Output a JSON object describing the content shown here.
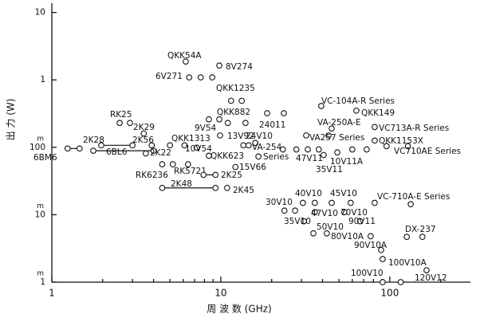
{
  "chart_data": {
    "type": "scatter",
    "x_label": "周 波 数 (GHz)",
    "y_label": "出 力 (W)",
    "log_x": true,
    "log_y": true,
    "xlim": [
      1,
      300
    ],
    "ylim": [
      0.001,
      13
    ],
    "xticks": [
      1,
      10,
      100
    ],
    "xminorticks": [
      2,
      3,
      4,
      5,
      6,
      7,
      8,
      9,
      20,
      30,
      40,
      50,
      60,
      70,
      80,
      90,
      200
    ],
    "yticks": [
      10,
      1,
      {
        "value": 0.1,
        "label": "100",
        "unit": "m"
      },
      {
        "value": 0.01,
        "label": "10",
        "unit": "m"
      },
      {
        "value": 0.001,
        "label": "1",
        "unit": "m"
      }
    ],
    "color": "#111111",
    "groups": [
      {
        "label": "QKK54A",
        "x": [
          6.2
        ],
        "y": [
          1.87
        ]
      },
      {
        "label": "8V274",
        "x": [
          9.8
        ],
        "y": [
          1.63
        ]
      },
      {
        "label": "6V271",
        "x": [
          6.5,
          7.6,
          8.9
        ],
        "y": [
          1.09,
          1.09,
          1.09
        ]
      },
      {
        "label": "QKK1235",
        "x": [
          11.5,
          13.3
        ],
        "y": [
          0.49,
          0.49
        ]
      },
      {
        "label": "QKK882",
        "x": [
          8.5,
          9.8
        ],
        "y": [
          0.26,
          0.26
        ]
      },
      {
        "label": "RK25",
        "x": [
          2.52,
          2.9
        ],
        "y": [
          0.23,
          0.23
        ]
      },
      {
        "label": "2K29",
        "x": [
          3.5
        ],
        "y": [
          0.16
        ]
      },
      {
        "label": "9V54",
        "x": [
          11,
          14
        ],
        "y": [
          0.23,
          0.23
        ]
      },
      {
        "label": "24011",
        "x": [
          18.8,
          23.6
        ],
        "y": [
          0.32,
          0.32
        ]
      },
      {
        "label": "13V92",
        "x": [
          9.9
        ],
        "y": [
          0.15
        ]
      },
      {
        "label": "24V10",
        "x": [
          16
        ],
        "y": [
          0.116
        ]
      },
      {
        "label": "2K28",
        "x": [
          1.96,
          3.0
        ],
        "y": [
          0.107,
          0.107
        ],
        "line": true
      },
      {
        "label": "2K56",
        "x": [
          3.9
        ],
        "y": [
          0.107
        ]
      },
      {
        "label": "QKK1313",
        "x": [
          5.0,
          6.1
        ],
        "y": [
          0.107,
          0.107
        ]
      },
      {
        "label": "10V54",
        "x": [
          7.2
        ],
        "y": [
          0.099
        ]
      },
      {
        "label": "VA-254",
        "x": [
          13.6,
          14.6
        ],
        "y": [
          0.107,
          0.107
        ]
      },
      {
        "label": "QKK623",
        "x": [
          8.5
        ],
        "y": [
          0.075
        ]
      },
      {
        "label": "6BL6",
        "x": [
          1.76,
          4.0
        ],
        "y": [
          0.089,
          0.089
        ],
        "line": true
      },
      {
        "label": "2K22",
        "x": [
          3.6
        ],
        "y": [
          0.081
        ]
      },
      {
        "label": "6BM6",
        "x": [
          1.24,
          1.46
        ],
        "y": [
          0.096,
          0.096
        ],
        "line": true
      },
      {
        "label": "Series",
        "x": [
          16.7
        ],
        "y": [
          0.073
        ]
      },
      {
        "label": "15V66",
        "x": [
          12.2
        ],
        "y": [
          0.051
        ]
      },
      {
        "label": "RK6236",
        "x": [
          4.5,
          5.2
        ],
        "y": [
          0.056,
          0.056
        ]
      },
      {
        "label": "RK5721",
        "x": [
          6.4
        ],
        "y": [
          0.056
        ]
      },
      {
        "label": "2K25",
        "x": [
          7.9,
          9.3
        ],
        "y": [
          0.039,
          0.039
        ],
        "line": true
      },
      {
        "label": "2K48",
        "x": [
          4.5,
          9.3
        ],
        "y": [
          0.025,
          0.025
        ],
        "line": true
      },
      {
        "label": "2K45",
        "x": [
          10.9
        ],
        "y": [
          0.025
        ]
      },
      {
        "label": "VC-104A-R Series",
        "x": [
          39.3
        ],
        "y": [
          0.41
        ]
      },
      {
        "label": "QKK149",
        "x": [
          63.4
        ],
        "y": [
          0.35
        ]
      },
      {
        "label": "VA-250A-E",
        "x": [
          45.3
        ],
        "y": [
          0.19
        ]
      },
      {
        "label": "VC713A-R Series",
        "x": [
          81.4
        ],
        "y": [
          0.2
        ]
      },
      {
        "label": "VA257 Series",
        "x": [
          32,
          43.4
        ],
        "y": [
          0.15,
          0.15
        ]
      },
      {
        "label": "QKK1153X",
        "x": [
          81.4
        ],
        "y": [
          0.126
        ]
      },
      {
        "label": "47V11",
        "x": [
          23.3,
          28,
          32.7,
          38
        ],
        "y": [
          0.093,
          0.093,
          0.093,
          0.093
        ]
      },
      {
        "label": "10V11A",
        "x": [
          48.9,
          60,
          73
        ],
        "y": [
          0.084,
          0.093,
          0.093
        ]
      },
      {
        "label": "VC710AE Series",
        "x": [
          95.7,
          128
        ],
        "y": [
          0.104,
          0.104
        ]
      },
      {
        "label": "35V11",
        "x": [
          40.6
        ],
        "y": [
          0.077
        ]
      },
      {
        "label": "30V10",
        "x": [
          23.8,
          27.5
        ],
        "y": [
          0.0115,
          0.0115
        ]
      },
      {
        "label": "40V10",
        "x": [
          30.6,
          36
        ],
        "y": [
          0.015,
          0.015
        ]
      },
      {
        "label": "45V10",
        "x": [
          45.3,
          58.7
        ],
        "y": [
          0.015,
          0.015
        ]
      },
      {
        "label": "VC-710A-E Series",
        "x": [
          81.4,
          133
        ],
        "y": [
          0.015,
          0.0143
        ]
      },
      {
        "label": "47V10",
        "x": [
          36
        ],
        "y": [
          0.0109
        ]
      },
      {
        "label": "70V10",
        "x": [
          53.8
        ],
        "y": [
          0.0109
        ]
      },
      {
        "label": "35V10",
        "x": [
          31
        ],
        "y": [
          0.008
        ]
      },
      {
        "label": "90V11",
        "x": [
          66.8
        ],
        "y": [
          0.008
        ]
      },
      {
        "label": "50V10",
        "x": [
          35.3,
          42.4
        ],
        "y": [
          0.0053,
          0.0053
        ]
      },
      {
        "label": "DX-237",
        "x": [
          126,
          156
        ],
        "y": [
          0.0047,
          0.0047
        ]
      },
      {
        "label": "80V10A",
        "x": [
          77
        ],
        "y": [
          0.0048
        ]
      },
      {
        "label": "90V10A",
        "x": [
          88.8
        ],
        "y": [
          0.003
        ]
      },
      {
        "label": "100V10A",
        "x": [
          90.7
        ],
        "y": [
          0.0022
        ]
      },
      {
        "label": "100V10",
        "x": [
          90.7
        ],
        "y": [
          0.001
        ]
      },
      {
        "label": "120V12",
        "x": [
          165,
          116
        ],
        "y": [
          0.0015,
          0.001
        ]
      }
    ]
  }
}
